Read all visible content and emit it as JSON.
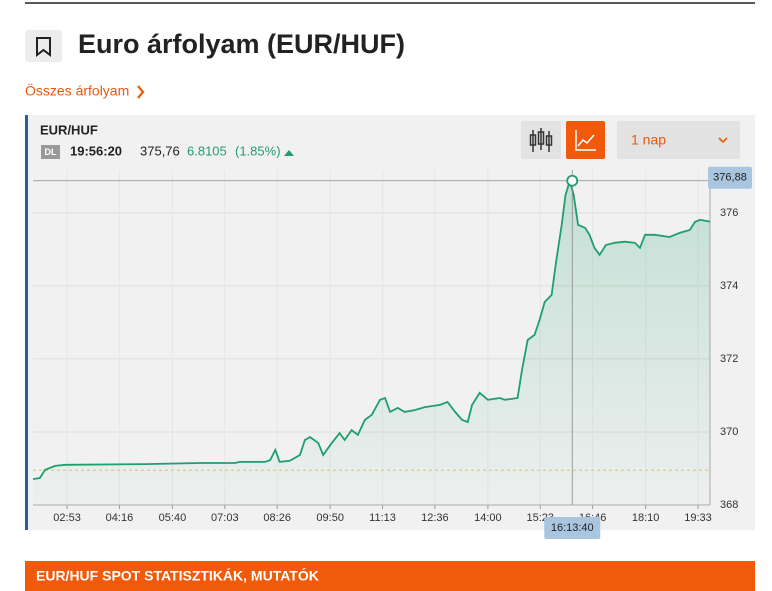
{
  "page": {
    "title": "Euro árfolyam (EUR/HUF)",
    "link": "Összes árfolyam",
    "widget": {
      "symbol": "EUR/HUF",
      "badge": "DL",
      "time": "19:56:20",
      "price": "375,76",
      "change": "6.8105",
      "change_pct": "(1.85%)",
      "period": "1 nap"
    },
    "section_title": "EUR/HUF SPOT STATISZTIKÁK, MUTATÓK"
  },
  "chart_data": {
    "type": "line",
    "color": "#1f9e6e",
    "grid": true,
    "x": [
      119,
      130,
      138,
      154,
      170,
      297,
      384,
      439,
      447,
      487,
      495,
      503,
      510,
      526,
      542,
      550,
      558,
      571,
      579,
      590,
      605,
      613,
      624,
      634,
      645,
      656,
      669,
      677,
      685,
      697,
      708,
      724,
      740,
      764,
      776,
      788,
      799,
      808,
      815,
      827,
      840,
      859,
      867,
      887,
      894,
      903,
      914,
      922,
      930,
      941,
      948,
      957,
      963,
      970,
      976,
      983,
      994,
      1001,
      1009,
      1017,
      1027,
      1041,
      1057,
      1073,
      1081,
      1089,
      1104,
      1128,
      1144,
      1160,
      1168,
      1176,
      1192
    ],
    "series": [
      {
        "name": "EUR/HUF",
        "color": "#1f9e6e",
        "values": [
          368.71,
          368.74,
          368.96,
          369.07,
          369.1,
          369.12,
          369.15,
          369.15,
          369.18,
          369.18,
          369.23,
          369.51,
          369.18,
          369.21,
          369.37,
          369.78,
          369.86,
          369.7,
          369.37,
          369.64,
          369.97,
          369.78,
          370.05,
          369.92,
          370.33,
          370.47,
          370.88,
          370.93,
          370.55,
          370.66,
          370.55,
          370.6,
          370.68,
          370.74,
          370.82,
          370.55,
          370.33,
          370.27,
          370.74,
          371.07,
          370.88,
          370.93,
          370.88,
          370.93,
          371.7,
          372.52,
          372.66,
          373.07,
          373.56,
          373.75,
          374.66,
          375.67,
          376.49,
          376.88,
          376.49,
          375.67,
          375.59,
          375.4,
          375.04,
          374.85,
          375.12,
          375.18,
          375.21,
          375.18,
          375.04,
          375.4,
          375.4,
          375.34,
          375.45,
          375.53,
          375.75,
          375.81,
          375.76
        ]
      }
    ],
    "xlim": [
      119,
      1192
    ],
    "ylim": [
      368,
      376.9
    ],
    "xticks": [
      {
        "value": 173,
        "label": "02:53"
      },
      {
        "value": 256,
        "label": "04:16"
      },
      {
        "value": 340,
        "label": "05:40"
      },
      {
        "value": 423,
        "label": "07:03"
      },
      {
        "value": 506,
        "label": "08:26"
      },
      {
        "value": 590,
        "label": "09:50"
      },
      {
        "value": 673,
        "label": "11:13"
      },
      {
        "value": 756,
        "label": "12:36"
      },
      {
        "value": 840,
        "label": "14:00"
      },
      {
        "value": 923,
        "label": "15:23"
      },
      {
        "value": 1006,
        "label": "16:46"
      },
      {
        "value": 1090,
        "label": "18:10"
      },
      {
        "value": 1173,
        "label": "19:33"
      }
    ],
    "yticks": [
      368,
      370,
      372,
      374,
      376
    ],
    "prev_close": 368.95,
    "crosshair": {
      "x": 973.67,
      "y": 376.88,
      "x_label": "16:13:40",
      "y_label": "376,88"
    }
  }
}
